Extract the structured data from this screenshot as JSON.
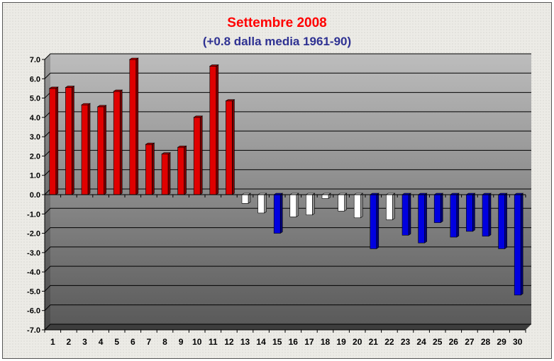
{
  "chart_data": {
    "type": "bar",
    "title": "Settembre 2008",
    "subtitle": "(+0.8 dalla media 1961-90)",
    "xlabel": "",
    "ylabel": "",
    "ylim": [
      -7.0,
      7.0
    ],
    "y_ticks": [
      "7.0",
      "6.0",
      "5.0",
      "4.0",
      "3.0",
      "2.0",
      "1.0",
      "0.0",
      "-1.0",
      "-2.0",
      "-3.0",
      "-4.0",
      "-5.0",
      "-6.0",
      "-7.0"
    ],
    "categories": [
      "1",
      "2",
      "3",
      "4",
      "5",
      "6",
      "7",
      "8",
      "9",
      "10",
      "11",
      "12",
      "13",
      "14",
      "15",
      "16",
      "17",
      "18",
      "19",
      "20",
      "21",
      "22",
      "23",
      "24",
      "25",
      "26",
      "27",
      "28",
      "29",
      "30"
    ],
    "values": [
      5.5,
      5.55,
      4.65,
      4.55,
      5.35,
      7.0,
      2.6,
      2.1,
      2.45,
      4.0,
      6.65,
      4.85,
      -0.45,
      -0.95,
      -2.0,
      -1.15,
      -1.05,
      -0.2,
      -0.85,
      -1.2,
      -2.8,
      -1.3,
      -2.1,
      -2.5,
      -1.45,
      -2.2,
      -1.9,
      -2.15,
      -2.8,
      -5.2
    ],
    "bar_colors": [
      "#e00000",
      "#e00000",
      "#e00000",
      "#e00000",
      "#e00000",
      "#e00000",
      "#e00000",
      "#e00000",
      "#e00000",
      "#e00000",
      "#e00000",
      "#e00000",
      "#ffffff",
      "#ffffff",
      "#0000e0",
      "#ffffff",
      "#ffffff",
      "#ffffff",
      "#ffffff",
      "#ffffff",
      "#0000e0",
      "#ffffff",
      "#0000e0",
      "#0000e0",
      "#0000e0",
      "#0000e0",
      "#0000e0",
      "#0000e0",
      "#0000e0",
      "#0000e0"
    ],
    "grid": true,
    "legend": "none"
  }
}
